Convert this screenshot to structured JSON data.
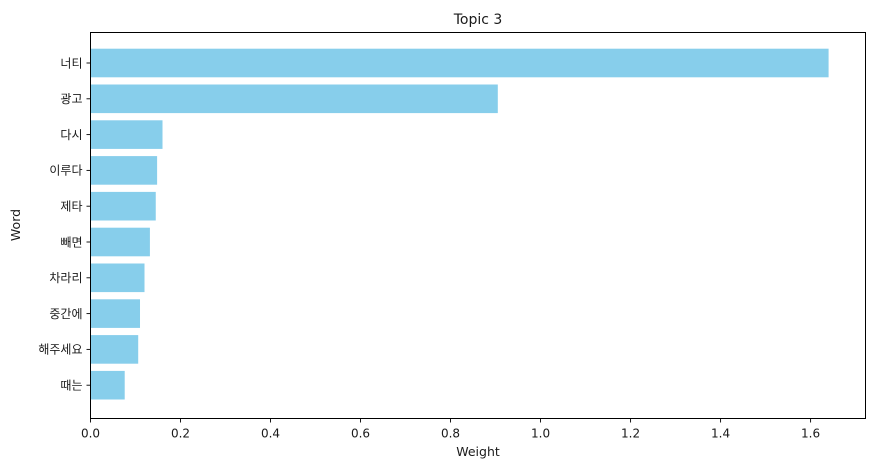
{
  "chart_data": {
    "type": "bar",
    "orientation": "horizontal",
    "title": "Topic 3",
    "xlabel": "Weight",
    "ylabel": "Word",
    "categories": [
      "너티",
      "광고",
      "다시",
      "이루다",
      "제타",
      "빼면",
      "차라리",
      "중간에",
      "해주세요",
      "때는"
    ],
    "values": [
      1.64,
      0.905,
      0.16,
      0.148,
      0.145,
      0.132,
      0.12,
      0.11,
      0.106,
      0.076
    ],
    "xlim": [
      0.0,
      1.722
    ],
    "xticks": [
      "0.0",
      "0.2",
      "0.4",
      "0.6",
      "0.8",
      "1.0",
      "1.2",
      "1.4",
      "1.6"
    ],
    "xtick_values": [
      0.0,
      0.2,
      0.4,
      0.6,
      0.8,
      1.0,
      1.2,
      1.4,
      1.6
    ],
    "grid": false,
    "legend": "none",
    "bar_color": "#87ceeb"
  }
}
